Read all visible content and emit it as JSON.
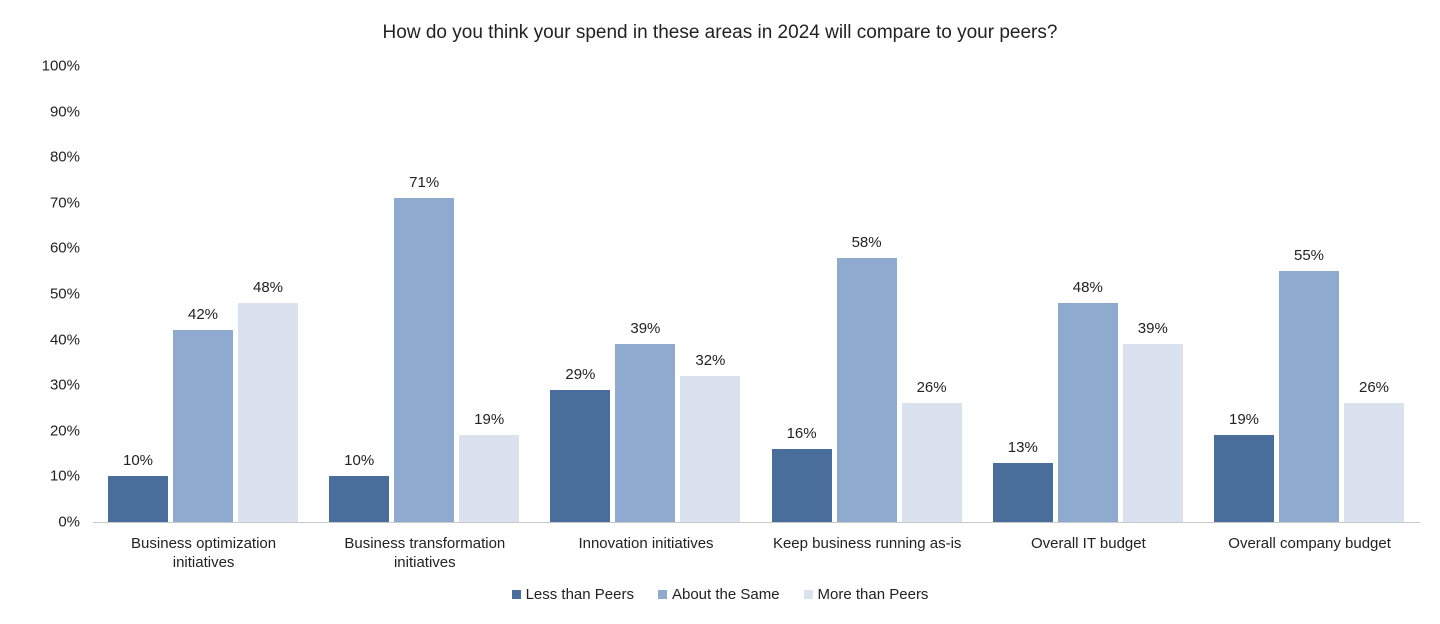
{
  "chart_data": {
    "type": "bar",
    "title": "How do you think your spend in these areas in 2024 will compare to your peers?",
    "categories": [
      "Business optimization initiatives",
      "Business transformation initiatives",
      "Innovation initiatives",
      "Keep business running as-is",
      "Overall IT budget",
      "Overall company budget"
    ],
    "series": [
      {
        "name": "Less than Peers",
        "color": "#4a6e9c",
        "values": [
          10,
          10,
          29,
          16,
          13,
          19
        ]
      },
      {
        "name": "About the Same",
        "color": "#8eaacf",
        "values": [
          42,
          71,
          39,
          58,
          48,
          55
        ]
      },
      {
        "name": "More than Peers",
        "color": "#d9e2ee",
        "values": [
          48,
          19,
          32,
          26,
          39,
          26
        ]
      }
    ],
    "ylim": [
      0,
      100
    ],
    "yticks": [
      "0%",
      "10%",
      "20%",
      "30%",
      "40%",
      "50%",
      "60%",
      "70%",
      "80%",
      "90%",
      "100%"
    ],
    "value_suffix": "%",
    "grid": false,
    "legend": "bottom"
  }
}
